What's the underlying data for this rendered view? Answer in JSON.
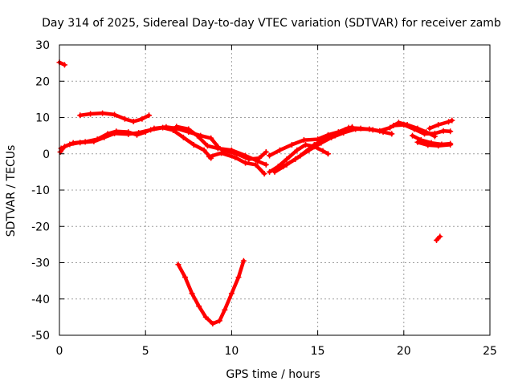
{
  "chart_data": {
    "type": "scatter",
    "title": "Day 314 of 2025, Sidereal Day-to-day VTEC variation (SDTVAR) for receiver zamb",
    "xlabel": "GPS time / hours",
    "ylabel": "SDTVAR / TECUs",
    "xlim": [
      0,
      25
    ],
    "ylim": [
      -50,
      30
    ],
    "xticks": [
      0,
      5,
      10,
      15,
      20,
      25
    ],
    "yticks": [
      -50,
      -40,
      -30,
      -20,
      -10,
      0,
      10,
      20,
      30
    ],
    "grid": true,
    "legend": "none",
    "series_color": "#ff0000",
    "series": [
      {
        "name": "arc-isolated-1",
        "points": [
          [
            0.0,
            25.2
          ],
          [
            0.3,
            24.5
          ]
        ]
      },
      {
        "name": "arc-upper-left",
        "points": [
          [
            1.2,
            10.6
          ],
          [
            1.8,
            11.0
          ],
          [
            2.5,
            11.2
          ],
          [
            3.2,
            10.8
          ],
          [
            3.8,
            9.6
          ],
          [
            4.3,
            8.9
          ],
          [
            4.8,
            9.6
          ],
          [
            5.2,
            10.6
          ]
        ]
      },
      {
        "name": "arc-main-left",
        "points": [
          [
            0.05,
            0.5
          ],
          [
            0.3,
            2.0
          ],
          [
            0.8,
            3.0
          ],
          [
            1.5,
            3.3
          ],
          [
            2.2,
            4.0
          ],
          [
            2.8,
            5.5
          ],
          [
            3.3,
            6.2
          ],
          [
            4.0,
            6.0
          ],
          [
            4.5,
            5.2
          ],
          [
            5.0,
            6.0
          ],
          [
            5.5,
            7.0
          ],
          [
            6.2,
            7.4
          ],
          [
            6.8,
            7.0
          ],
          [
            7.5,
            6.0
          ],
          [
            8.2,
            5.0
          ],
          [
            8.8,
            4.3
          ],
          [
            9.2,
            2.0
          ]
        ]
      },
      {
        "name": "arc-main-left-b",
        "points": [
          [
            0.1,
            1.5
          ],
          [
            0.6,
            2.6
          ],
          [
            1.2,
            3.1
          ],
          [
            2.0,
            3.4
          ],
          [
            2.6,
            4.5
          ],
          [
            3.2,
            5.6
          ],
          [
            4.0,
            5.4
          ],
          [
            4.6,
            5.8
          ],
          [
            5.3,
            6.6
          ],
          [
            6.0,
            7.2
          ],
          [
            6.6,
            6.5
          ],
          [
            7.2,
            4.5
          ],
          [
            7.8,
            2.5
          ],
          [
            8.4,
            1.0
          ],
          [
            8.8,
            -1.2
          ]
        ]
      },
      {
        "name": "arc-mid-a",
        "points": [
          [
            6.8,
            7.5
          ],
          [
            7.5,
            6.8
          ],
          [
            8.0,
            5.0
          ],
          [
            8.6,
            2.2
          ],
          [
            9.2,
            1.5
          ],
          [
            10.0,
            1.0
          ],
          [
            10.8,
            -0.5
          ],
          [
            11.5,
            -2.0
          ],
          [
            12.0,
            -3.0
          ]
        ]
      },
      {
        "name": "arc-mid-b",
        "points": [
          [
            8.7,
            -0.8
          ],
          [
            9.4,
            0.2
          ],
          [
            10.2,
            -1.0
          ],
          [
            10.8,
            -2.5
          ],
          [
            11.4,
            -3.0
          ],
          [
            11.9,
            -5.5
          ]
        ]
      },
      {
        "name": "arc-mid-c",
        "points": [
          [
            9.5,
            1.0
          ],
          [
            10.3,
            0.0
          ],
          [
            11.0,
            -1.5
          ],
          [
            11.6,
            -1.2
          ],
          [
            12.0,
            0.5
          ]
        ]
      },
      {
        "name": "arc-dip",
        "points": [
          [
            6.9,
            -30.5
          ],
          [
            7.3,
            -34.0
          ],
          [
            7.7,
            -38.5
          ],
          [
            8.1,
            -42.0
          ],
          [
            8.5,
            -45.0
          ],
          [
            8.9,
            -46.8
          ],
          [
            9.3,
            -46.0
          ],
          [
            9.6,
            -43.0
          ],
          [
            10.0,
            -38.5
          ],
          [
            10.4,
            -34.0
          ],
          [
            10.7,
            -29.5
          ]
        ]
      },
      {
        "name": "arc-right-a",
        "points": [
          [
            12.2,
            -5.0
          ],
          [
            12.7,
            -3.5
          ],
          [
            13.2,
            -1.5
          ],
          [
            13.8,
            1.0
          ],
          [
            14.3,
            2.5
          ],
          [
            14.8,
            2.0
          ],
          [
            15.3,
            0.8
          ],
          [
            15.6,
            0.0
          ]
        ]
      },
      {
        "name": "arc-right-b",
        "points": [
          [
            12.5,
            -5.0
          ],
          [
            13.2,
            -3.0
          ],
          [
            14.0,
            -0.5
          ],
          [
            14.8,
            2.5
          ],
          [
            15.4,
            4.0
          ],
          [
            16.0,
            5.0
          ],
          [
            16.6,
            6.6
          ],
          [
            17.0,
            7.4
          ]
        ]
      },
      {
        "name": "arc-right-c",
        "points": [
          [
            12.2,
            -0.5
          ],
          [
            12.8,
            1.0
          ],
          [
            13.5,
            2.5
          ],
          [
            14.2,
            3.8
          ],
          [
            15.0,
            4.0
          ],
          [
            15.6,
            5.2
          ],
          [
            16.2,
            6.0
          ],
          [
            16.8,
            7.2
          ],
          [
            17.5,
            7.0
          ],
          [
            18.2,
            6.6
          ],
          [
            18.8,
            6.0
          ],
          [
            19.3,
            5.5
          ]
        ]
      },
      {
        "name": "arc-right-d",
        "points": [
          [
            13.0,
            -3.5
          ],
          [
            13.7,
            -1.5
          ],
          [
            14.5,
            1.0
          ],
          [
            15.2,
            3.0
          ],
          [
            15.8,
            4.5
          ],
          [
            16.5,
            5.8
          ],
          [
            17.2,
            6.8
          ],
          [
            18.0,
            6.8
          ],
          [
            18.6,
            6.3
          ],
          [
            19.2,
            7.2
          ],
          [
            19.7,
            8.6
          ],
          [
            20.2,
            8.0
          ],
          [
            20.8,
            7.0
          ],
          [
            21.3,
            6.0
          ],
          [
            21.8,
            4.8
          ]
        ]
      },
      {
        "name": "arc-right-e",
        "points": [
          [
            19.4,
            7.8
          ],
          [
            20.0,
            8.0
          ],
          [
            20.6,
            6.8
          ],
          [
            21.2,
            5.5
          ],
          [
            21.8,
            5.6
          ],
          [
            22.3,
            6.3
          ],
          [
            22.7,
            6.2
          ]
        ]
      },
      {
        "name": "arc-right-f",
        "points": [
          [
            20.5,
            5.0
          ],
          [
            21.0,
            3.8
          ],
          [
            21.6,
            3.0
          ],
          [
            22.2,
            2.6
          ],
          [
            22.7,
            2.8
          ]
        ]
      },
      {
        "name": "arc-right-g",
        "points": [
          [
            20.8,
            3.2
          ],
          [
            21.4,
            2.4
          ],
          [
            22.0,
            2.2
          ],
          [
            22.7,
            2.5
          ]
        ]
      },
      {
        "name": "arc-right-h",
        "points": [
          [
            21.5,
            7.0
          ],
          [
            22.0,
            8.0
          ],
          [
            22.6,
            8.8
          ],
          [
            22.8,
            9.2
          ]
        ]
      },
      {
        "name": "arc-isolated-2",
        "points": [
          [
            21.9,
            -23.8
          ],
          [
            22.1,
            -22.8
          ]
        ]
      }
    ]
  }
}
